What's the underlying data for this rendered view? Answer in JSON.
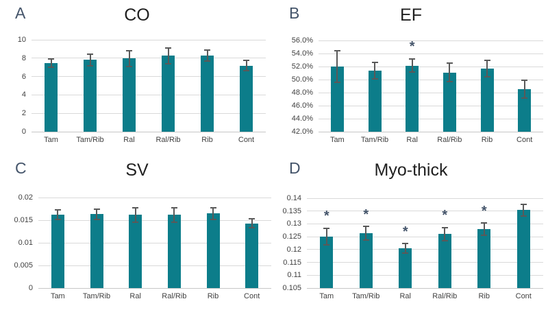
{
  "figure": {
    "background": "#ffffff"
  },
  "colors": {
    "bar_fill": "#0C7D8A",
    "error_bar": "#595959",
    "gridline": "#D9D9D9",
    "axis_line": "#C6C6C6",
    "tick_text": "#404040",
    "title_text": "#1F1F1F",
    "accent_letters_and_asterisks": "#44546A"
  },
  "chart_data": [
    {
      "letter": "A",
      "type": "bar",
      "title": "CO",
      "categories": [
        "Tam",
        "Tam/Rib",
        "Ral",
        "Ral/Rib",
        "Rib",
        "Cont"
      ],
      "values": [
        7.45,
        7.8,
        7.95,
        8.25,
        8.3,
        7.2
      ],
      "errors": [
        0.45,
        0.65,
        0.85,
        0.85,
        0.6,
        0.55
      ],
      "significance": [
        "",
        "",
        "",
        "",
        "",
        ""
      ],
      "ylim": [
        0,
        10
      ],
      "ytick_step": 2,
      "ytick_format": "int",
      "grid": "horizontal",
      "legend": "none"
    },
    {
      "letter": "B",
      "type": "bar",
      "title": "EF",
      "categories": [
        "Tam",
        "Tam/Rib",
        "Ral",
        "Ral/Rib",
        "Rib",
        "Cont"
      ],
      "values": [
        52.0,
        51.35,
        52.15,
        51.1,
        51.7,
        48.55
      ],
      "errors": [
        2.4,
        1.25,
        1.0,
        1.4,
        1.25,
        1.35
      ],
      "significance": [
        "",
        "",
        "*",
        "",
        "",
        ""
      ],
      "ylim": [
        42,
        56
      ],
      "ytick_step": 2,
      "ytick_format": "percent1",
      "grid": "horizontal",
      "legend": "none"
    },
    {
      "letter": "C",
      "type": "bar",
      "title": "SV",
      "categories": [
        "Tam",
        "Tam/Rib",
        "Ral",
        "Ral/Rib",
        "Rib",
        "Cont"
      ],
      "values": [
        0.0162,
        0.0163,
        0.0162,
        0.0162,
        0.0165,
        0.0143
      ],
      "errors": [
        0.001,
        0.0012,
        0.0016,
        0.0016,
        0.0013,
        0.001
      ],
      "significance": [
        "",
        "",
        "",
        "",
        "",
        ""
      ],
      "ylim": [
        0,
        0.02
      ],
      "ytick_step": 0.005,
      "ytick_format": "trim",
      "grid": "horizontal",
      "legend": "none"
    },
    {
      "letter": "D",
      "type": "bar",
      "title": "Myo-thick",
      "categories": [
        "Tam",
        "Tam/Rib",
        "Ral",
        "Ral/Rib",
        "Rib",
        "Cont"
      ],
      "values": [
        0.125,
        0.1263,
        0.1205,
        0.126,
        0.128,
        0.1354
      ],
      "errors": [
        0.0033,
        0.0027,
        0.0018,
        0.0026,
        0.0023,
        0.0023
      ],
      "significance": [
        "*",
        "*",
        "*",
        "*",
        "*",
        ""
      ],
      "ylim": [
        0.105,
        0.14
      ],
      "ytick_step": 0.005,
      "ytick_format": "trim",
      "grid": "horizontal",
      "legend": "none"
    }
  ]
}
